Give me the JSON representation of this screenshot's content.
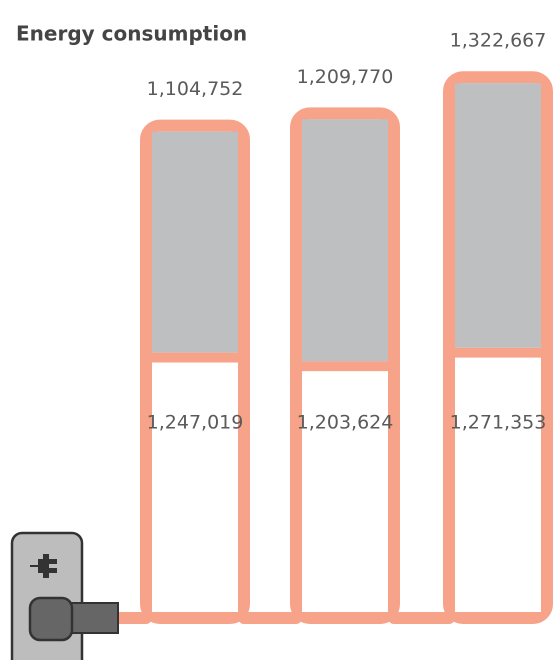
{
  "chart_data": {
    "type": "bar",
    "title": "Energy consumption",
    "color": "#f6a389",
    "series": [
      {
        "color": "#bebfc1",
        "values": [
          1104752,
          1209770,
          1322667
        ],
        "value_labels": [
          "1,104,752",
          "1,209,770",
          "1,322,667"
        ]
      },
      {
        "color": "#ffffff",
        "values": [
          1247019,
          1203624,
          1271353
        ],
        "value_labels": [
          "1,247,019",
          "1,203,624",
          "1,271,353"
        ]
      }
    ]
  }
}
